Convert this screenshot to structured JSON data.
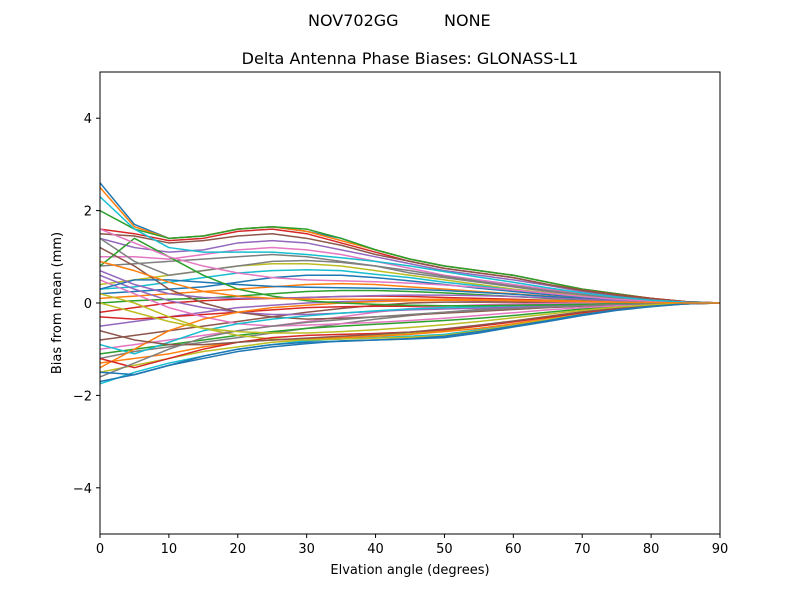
{
  "figure": {
    "suptitle_left": "NOV702GG",
    "suptitle_right": "NONE",
    "title": "Delta Antenna Phase Biases: GLONASS-L1"
  },
  "chart_data": {
    "type": "line",
    "title": "Delta Antenna Phase Biases: GLONASS-L1",
    "xlabel": "Elvation angle (degrees)",
    "ylabel": "Bias from mean (mm)",
    "xlim": [
      0,
      90
    ],
    "ylim": [
      -5,
      5
    ],
    "x_ticks": [
      0,
      10,
      20,
      30,
      40,
      50,
      60,
      70,
      80,
      90
    ],
    "y_ticks": [
      -4,
      -2,
      0,
      2,
      4
    ],
    "y_tick_labels": [
      "−4",
      "−2",
      "0",
      "2",
      "4"
    ],
    "x": [
      0,
      5,
      10,
      15,
      20,
      25,
      30,
      35,
      40,
      45,
      50,
      55,
      60,
      65,
      70,
      75,
      80,
      85,
      90
    ],
    "grid": false,
    "legend": "none",
    "color_cycle": [
      "#1f77b4",
      "#ff7f0e",
      "#2ca02c",
      "#d62728",
      "#9467bd",
      "#8c564b",
      "#e377c2",
      "#7f7f7f",
      "#bcbd22",
      "#17becf"
    ],
    "series": [
      {
        "values": [
          2.6,
          1.7,
          1.4,
          1.45,
          1.6,
          1.65,
          1.55,
          1.4,
          1.15,
          0.95,
          0.8,
          0.7,
          0.6,
          0.45,
          0.3,
          0.2,
          0.1,
          0.03,
          0
        ]
      },
      {
        "values": [
          2.5,
          1.65,
          1.4,
          1.45,
          1.6,
          1.65,
          1.55,
          1.35,
          1.15,
          0.95,
          0.8,
          0.7,
          0.6,
          0.45,
          0.3,
          0.2,
          0.1,
          0.03,
          0
        ]
      },
      {
        "values": [
          2.0,
          1.6,
          1.4,
          1.45,
          1.6,
          1.65,
          1.6,
          1.4,
          1.15,
          0.95,
          0.8,
          0.7,
          0.6,
          0.45,
          0.3,
          0.2,
          0.1,
          0.03,
          0
        ]
      },
      {
        "values": [
          1.6,
          1.5,
          1.35,
          1.4,
          1.55,
          1.6,
          1.5,
          1.3,
          1.1,
          0.9,
          0.75,
          0.65,
          0.55,
          0.4,
          0.28,
          0.18,
          0.1,
          0.03,
          0
        ]
      },
      {
        "values": [
          1.4,
          1.2,
          1.1,
          1.15,
          1.3,
          1.35,
          1.3,
          1.15,
          1.0,
          0.85,
          0.7,
          0.6,
          0.5,
          0.38,
          0.25,
          0.15,
          0.08,
          0.02,
          0
        ]
      },
      {
        "values": [
          1.5,
          1.45,
          1.3,
          1.35,
          1.45,
          1.5,
          1.4,
          1.25,
          1.05,
          0.9,
          0.75,
          0.65,
          0.55,
          0.4,
          0.27,
          0.17,
          0.09,
          0.02,
          0
        ]
      },
      {
        "values": [
          1.0,
          1.0,
          0.95,
          1.05,
          1.15,
          1.2,
          1.15,
          1.05,
          0.9,
          0.75,
          0.6,
          0.5,
          0.4,
          0.3,
          0.2,
          0.12,
          0.06,
          0.02,
          0
        ]
      },
      {
        "values": [
          0.8,
          0.85,
          0.9,
          0.95,
          1.0,
          1.05,
          1.0,
          0.9,
          0.8,
          0.65,
          0.55,
          0.45,
          0.35,
          0.25,
          0.17,
          0.1,
          0.05,
          0.01,
          0
        ]
      },
      {
        "values": [
          0.4,
          0.5,
          0.6,
          0.7,
          0.8,
          0.85,
          0.85,
          0.8,
          0.7,
          0.6,
          0.5,
          0.4,
          0.3,
          0.22,
          0.15,
          0.08,
          0.04,
          0.01,
          0
        ]
      },
      {
        "values": [
          0.3,
          0.35,
          0.45,
          0.55,
          0.65,
          0.7,
          0.72,
          0.7,
          0.62,
          0.55,
          0.45,
          0.37,
          0.28,
          0.2,
          0.13,
          0.08,
          0.04,
          0.01,
          0
        ]
      },
      {
        "values": [
          0.2,
          0.25,
          0.3,
          0.35,
          0.45,
          0.55,
          0.6,
          0.6,
          0.55,
          0.48,
          0.4,
          0.32,
          0.25,
          0.18,
          0.12,
          0.07,
          0.03,
          0.01,
          0
        ]
      },
      {
        "values": [
          0.1,
          0.15,
          0.2,
          0.25,
          0.3,
          0.35,
          0.4,
          0.42,
          0.4,
          0.35,
          0.3,
          0.25,
          0.2,
          0.15,
          0.1,
          0.05,
          0.02,
          0.01,
          0
        ]
      },
      {
        "values": [
          0.0,
          0.05,
          0.08,
          0.1,
          0.15,
          0.2,
          0.25,
          0.27,
          0.27,
          0.25,
          0.22,
          0.18,
          0.14,
          0.1,
          0.07,
          0.04,
          0.02,
          0.0,
          0
        ]
      },
      {
        "values": [
          -0.2,
          -0.1,
          0.0,
          0.05,
          0.08,
          0.1,
          0.12,
          0.14,
          0.15,
          0.14,
          0.12,
          0.1,
          0.08,
          0.06,
          0.04,
          0.02,
          0.01,
          0.0,
          0
        ]
      },
      {
        "values": [
          -0.5,
          -0.4,
          -0.3,
          -0.2,
          -0.1,
          -0.05,
          0.0,
          0.03,
          0.05,
          0.06,
          0.06,
          0.05,
          0.04,
          0.03,
          0.02,
          0.01,
          0.0,
          0.0,
          0
        ]
      },
      {
        "values": [
          -0.8,
          -0.7,
          -0.6,
          -0.5,
          -0.4,
          -0.3,
          -0.2,
          -0.12,
          -0.05,
          0.0,
          0.02,
          0.02,
          0.02,
          0.01,
          0.01,
          0.0,
          0.0,
          0.0,
          0
        ]
      },
      {
        "values": [
          -1.0,
          -0.9,
          -0.8,
          -0.7,
          -0.6,
          -0.5,
          -0.4,
          -0.3,
          -0.2,
          -0.12,
          -0.07,
          -0.04,
          -0.02,
          -0.01,
          0.0,
          0.0,
          0.0,
          0.0,
          0
        ]
      },
      {
        "values": [
          -1.2,
          -1.05,
          -0.95,
          -0.85,
          -0.75,
          -0.65,
          -0.55,
          -0.45,
          -0.35,
          -0.27,
          -0.2,
          -0.14,
          -0.1,
          -0.06,
          -0.03,
          -0.02,
          -0.01,
          0.0,
          0
        ]
      },
      {
        "values": [
          -1.5,
          -1.35,
          -1.2,
          -1.05,
          -0.95,
          -0.85,
          -0.8,
          -0.75,
          -0.7,
          -0.65,
          -0.6,
          -0.5,
          -0.4,
          -0.3,
          -0.2,
          -0.12,
          -0.06,
          -0.02,
          0
        ]
      },
      {
        "values": [
          -1.75,
          -1.5,
          -1.3,
          -1.15,
          -1.0,
          -0.9,
          -0.82,
          -0.78,
          -0.75,
          -0.72,
          -0.68,
          -0.58,
          -0.48,
          -0.36,
          -0.24,
          -0.14,
          -0.07,
          -0.02,
          0
        ]
      },
      {
        "values": [
          -1.7,
          -1.55,
          -1.35,
          -1.2,
          -1.05,
          -0.95,
          -0.88,
          -0.82,
          -0.8,
          -0.78,
          -0.75,
          -0.65,
          -0.52,
          -0.4,
          -0.27,
          -0.16,
          -0.08,
          -0.02,
          0
        ]
      },
      {
        "values": [
          -1.3,
          -1.2,
          -1.1,
          -0.95,
          -0.85,
          -0.8,
          -0.78,
          -0.75,
          -0.72,
          -0.68,
          -0.62,
          -0.55,
          -0.45,
          -0.34,
          -0.23,
          -0.13,
          -0.06,
          -0.02,
          0
        ]
      },
      {
        "values": [
          -1.1,
          -1.0,
          -0.9,
          -0.8,
          -0.7,
          -0.62,
          -0.55,
          -0.5,
          -0.46,
          -0.42,
          -0.38,
          -0.33,
          -0.27,
          -0.2,
          -0.13,
          -0.08,
          -0.04,
          -0.01,
          0
        ]
      },
      {
        "values": [
          -0.3,
          -0.35,
          -0.3,
          -0.25,
          -0.2,
          -0.15,
          -0.1,
          -0.08,
          -0.07,
          -0.07,
          -0.06,
          -0.06,
          -0.05,
          -0.04,
          -0.03,
          -0.02,
          -0.01,
          0.0,
          0
        ]
      },
      {
        "values": [
          0.6,
          0.3,
          0.05,
          -0.1,
          -0.2,
          -0.25,
          -0.25,
          -0.22,
          -0.18,
          -0.15,
          -0.13,
          -0.11,
          -0.09,
          -0.07,
          -0.05,
          -0.03,
          -0.01,
          0.0,
          0
        ]
      },
      {
        "values": [
          1.2,
          0.8,
          0.3,
          0.0,
          -0.2,
          -0.3,
          -0.35,
          -0.33,
          -0.3,
          -0.26,
          -0.22,
          -0.18,
          -0.14,
          -0.1,
          -0.07,
          -0.04,
          -0.02,
          0.0,
          0
        ]
      },
      {
        "values": [
          0.5,
          0.2,
          -0.1,
          -0.3,
          -0.45,
          -0.5,
          -0.48,
          -0.45,
          -0.42,
          -0.38,
          -0.33,
          -0.27,
          -0.21,
          -0.15,
          -0.1,
          -0.06,
          -0.03,
          -0.01,
          0
        ]
      },
      {
        "values": [
          1.4,
          0.9,
          0.6,
          0.7,
          0.8,
          0.9,
          0.92,
          0.88,
          0.8,
          0.7,
          0.58,
          0.47,
          0.37,
          0.27,
          0.18,
          0.1,
          0.05,
          0.01,
          0
        ]
      },
      {
        "values": [
          0.2,
          0.0,
          -0.3,
          -0.55,
          -0.7,
          -0.78,
          -0.8,
          -0.78,
          -0.76,
          -0.74,
          -0.7,
          -0.6,
          -0.48,
          -0.36,
          -0.24,
          -0.14,
          -0.07,
          -0.02,
          0
        ]
      },
      {
        "values": [
          -0.9,
          -1.1,
          -0.85,
          -0.6,
          -0.45,
          -0.35,
          -0.28,
          -0.22,
          -0.17,
          -0.13,
          -0.1,
          -0.08,
          -0.06,
          -0.04,
          -0.03,
          -0.02,
          -0.01,
          0.0,
          0
        ]
      },
      {
        "values": [
          0.3,
          0.5,
          0.5,
          0.45,
          0.4,
          0.36,
          0.34,
          0.33,
          0.32,
          0.3,
          0.27,
          0.23,
          0.19,
          0.14,
          0.1,
          0.06,
          0.03,
          0.01,
          0
        ]
      },
      {
        "values": [
          -1.4,
          -1.0,
          -0.6,
          -0.35,
          -0.2,
          -0.1,
          -0.05,
          0.0,
          0.03,
          0.05,
          0.06,
          0.06,
          0.05,
          0.04,
          0.03,
          0.02,
          0.01,
          0.0,
          0
        ]
      },
      {
        "values": [
          0.8,
          1.4,
          1.0,
          0.6,
          0.3,
          0.15,
          0.05,
          0.0,
          -0.03,
          -0.05,
          -0.06,
          -0.06,
          -0.05,
          -0.04,
          -0.03,
          -0.02,
          -0.01,
          0.0,
          0
        ]
      },
      {
        "values": [
          -1.2,
          -1.4,
          -1.2,
          -1.0,
          -0.85,
          -0.75,
          -0.7,
          -0.68,
          -0.66,
          -0.63,
          -0.58,
          -0.5,
          -0.41,
          -0.31,
          -0.21,
          -0.12,
          -0.06,
          -0.02,
          0
        ]
      },
      {
        "values": [
          0.7,
          0.4,
          0.2,
          0.12,
          0.1,
          0.1,
          0.12,
          0.14,
          0.16,
          0.17,
          0.17,
          0.16,
          0.14,
          0.11,
          0.08,
          0.05,
          0.02,
          0.01,
          0
        ]
      },
      {
        "values": [
          -0.6,
          -0.8,
          -0.9,
          -0.9,
          -0.85,
          -0.8,
          -0.76,
          -0.72,
          -0.68,
          -0.63,
          -0.56,
          -0.48,
          -0.39,
          -0.29,
          -0.19,
          -0.11,
          -0.05,
          -0.01,
          0
        ]
      },
      {
        "values": [
          1.6,
          1.3,
          1.0,
          0.8,
          0.65,
          0.55,
          0.5,
          0.48,
          0.46,
          0.43,
          0.39,
          0.34,
          0.28,
          0.21,
          0.14,
          0.08,
          0.04,
          0.01,
          0
        ]
      },
      {
        "values": [
          -1.6,
          -1.3,
          -1.0,
          -0.75,
          -0.6,
          -0.5,
          -0.42,
          -0.36,
          -0.3,
          -0.25,
          -0.2,
          -0.16,
          -0.12,
          -0.09,
          -0.06,
          -0.03,
          -0.02,
          0.0,
          0
        ]
      },
      {
        "values": [
          0.0,
          -0.2,
          -0.4,
          -0.55,
          -0.62,
          -0.65,
          -0.65,
          -0.62,
          -0.58,
          -0.53,
          -0.47,
          -0.4,
          -0.32,
          -0.24,
          -0.16,
          -0.09,
          -0.04,
          -0.01,
          0
        ]
      },
      {
        "values": [
          2.3,
          1.6,
          1.2,
          1.1,
          1.1,
          1.1,
          1.05,
          0.98,
          0.9,
          0.8,
          0.68,
          0.56,
          0.45,
          0.33,
          0.22,
          0.13,
          0.06,
          0.02,
          0
        ]
      },
      {
        "values": [
          -1.5,
          -1.55,
          -1.35,
          -1.15,
          -1.0,
          -0.9,
          -0.85,
          -0.83,
          -0.8,
          -0.77,
          -0.72,
          -0.62,
          -0.5,
          -0.38,
          -0.25,
          -0.15,
          -0.07,
          -0.02,
          0
        ]
      },
      {
        "values": [
          0.9,
          0.7,
          0.45,
          0.25,
          0.15,
          0.1,
          0.08,
          0.08,
          0.08,
          0.08,
          0.08,
          0.07,
          0.06,
          0.05,
          0.04,
          0.02,
          0.01,
          0.0,
          0
        ]
      }
    ]
  }
}
